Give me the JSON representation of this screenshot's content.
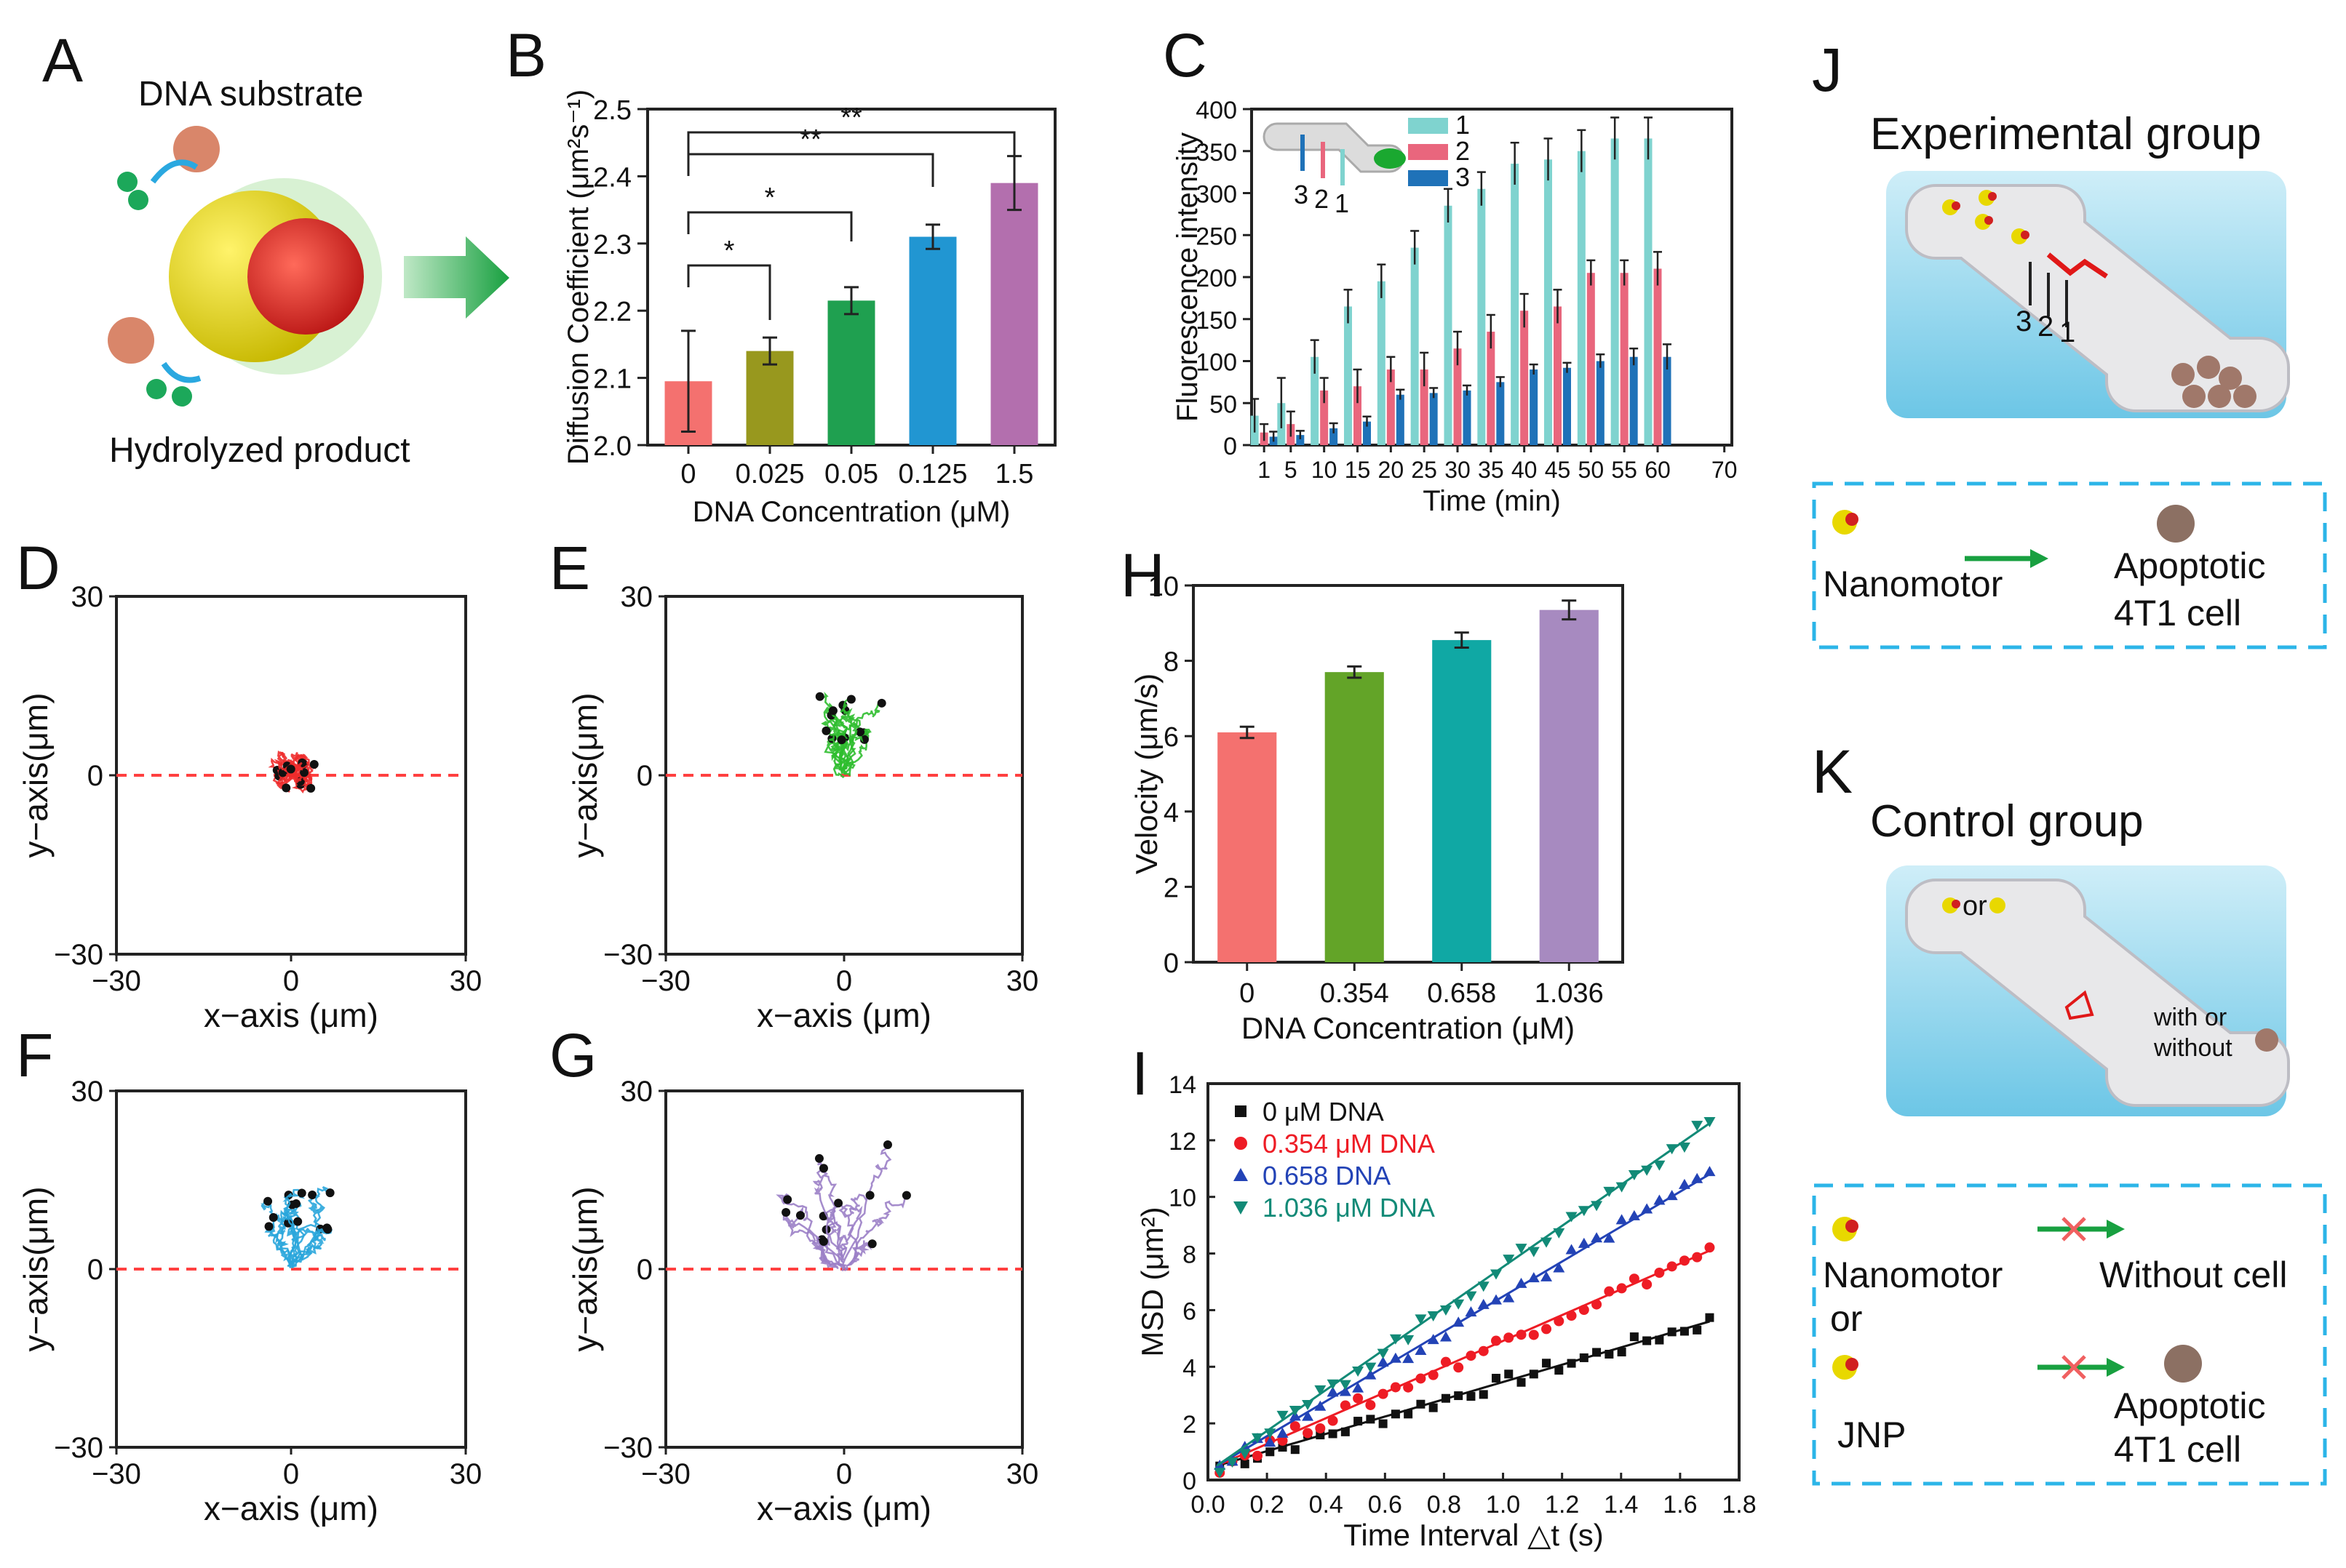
{
  "panels": {
    "A": {
      "letter": "A",
      "top_label": "DNA substrate",
      "bottom_label": "Hydrolyzed product"
    },
    "B": {
      "letter": "B"
    },
    "C": {
      "letter": "C"
    },
    "D": {
      "letter": "D"
    },
    "E": {
      "letter": "E"
    },
    "F": {
      "letter": "F"
    },
    "G": {
      "letter": "G"
    },
    "H": {
      "letter": "H"
    },
    "I": {
      "letter": "I"
    },
    "J": {
      "letter": "J",
      "title": "Experimental group",
      "channel_marks": [
        "3",
        "2",
        "1"
      ],
      "legend_left": "Nanomotor",
      "legend_right_1": "Apoptotic",
      "legend_right_2": "4T1 cell"
    },
    "K": {
      "letter": "K",
      "title": "Control group",
      "or_label": "or",
      "with_or_1": "with or",
      "with_or_2": "without",
      "row1_left": "Nanomotor",
      "row1_right": "Without cell",
      "or_mid": "or",
      "row2_left": "JNP",
      "row2_right_1": "Apoptotic",
      "row2_right_2": "4T1 cell"
    }
  },
  "colors": {
    "salmon": "#f4716f",
    "olive": "#98981e",
    "green": "#1fa050",
    "blue": "#2196d2",
    "purple": "#b36fae",
    "teal": "#7fd3cf",
    "pink": "#e9667d",
    "darkblue": "#1f72b8",
    "h_green": "#63a428",
    "h_teal": "#10a8a4",
    "h_purple": "#a78ac0",
    "i0": "#111111",
    "i1": "#ee1c25",
    "i2": "#2343b6",
    "i3": "#128a77",
    "traj_red": "#ee2b2b",
    "traj_green": "#2fbe2f",
    "traj_blue": "#2aa6dc",
    "traj_purple": "#9b7fc6",
    "dashed": "#ff4040",
    "box_dash": "#2cb5e8"
  },
  "chart_data": [
    {
      "id": "B",
      "type": "bar",
      "categories": [
        "0",
        "0.025",
        "0.05",
        "0.125",
        "1.5"
      ],
      "values": [
        2.095,
        2.14,
        2.215,
        2.31,
        2.39
      ],
      "errors": [
        0.075,
        0.02,
        0.02,
        0.018,
        0.04
      ],
      "ylim": [
        2.0,
        2.5
      ],
      "yticks": [
        "2.0",
        "2.1",
        "2.2",
        "2.3",
        "2.4",
        "2.5"
      ],
      "xlabel": "DNA Concentration (μM)",
      "ylabel": "Diffusion Coefficient (μm²s⁻¹)",
      "significance": [
        {
          "from": 0,
          "to": 1,
          "label": "*"
        },
        {
          "from": 0,
          "to": 2,
          "label": "*"
        },
        {
          "from": 0,
          "to": 3,
          "label": "**"
        },
        {
          "from": 0,
          "to": 4,
          "label": "**"
        }
      ]
    },
    {
      "id": "C",
      "type": "bar",
      "x": [
        "1",
        "5",
        "10",
        "15",
        "20",
        "25",
        "30",
        "35",
        "40",
        "45",
        "50",
        "55",
        "60"
      ],
      "xticks": [
        "1",
        "5",
        "10",
        "15",
        "20",
        "25",
        "30",
        "35",
        "40",
        "45",
        "50",
        "55",
        "60",
        "70"
      ],
      "series": [
        {
          "name": "1",
          "values": [
            35,
            50,
            105,
            165,
            195,
            235,
            285,
            305,
            335,
            340,
            350,
            365,
            365
          ],
          "errors": [
            20,
            30,
            20,
            20,
            20,
            20,
            20,
            20,
            25,
            25,
            25,
            25,
            25
          ]
        },
        {
          "name": "2",
          "values": [
            15,
            25,
            65,
            70,
            90,
            90,
            115,
            135,
            160,
            165,
            205,
            205,
            210
          ],
          "errors": [
            10,
            15,
            15,
            20,
            15,
            20,
            20,
            20,
            20,
            20,
            15,
            15,
            20
          ]
        },
        {
          "name": "3",
          "values": [
            10,
            12,
            20,
            28,
            60,
            62,
            65,
            75,
            90,
            92,
            100,
            105,
            105
          ],
          "errors": [
            6,
            5,
            6,
            6,
            6,
            6,
            6,
            6,
            6,
            6,
            8,
            10,
            15
          ]
        }
      ],
      "ylim": [
        0,
        400
      ],
      "yticks": [
        "0",
        "50",
        "100",
        "150",
        "200",
        "250",
        "300",
        "350",
        "400"
      ],
      "xlabel": "Time (min)",
      "ylabel": "Fluorescence intensity",
      "inset_marks": [
        "3",
        "2",
        "1"
      ]
    },
    {
      "id": "D",
      "type": "scatter",
      "xlabel": "x−axis (μm)",
      "ylabel": "y−axis(μm)",
      "xlim": [
        -30,
        30
      ],
      "ylim": [
        -30,
        30
      ],
      "xticks": [
        "−30",
        "0",
        "30"
      ],
      "yticks": [
        "30",
        "0",
        "−30"
      ],
      "center": [
        0,
        0
      ],
      "spread": [
        5,
        7
      ]
    },
    {
      "id": "E",
      "type": "scatter",
      "xlabel": "x−axis (μm)",
      "ylabel": "y−axis(μm)",
      "xlim": [
        -30,
        30
      ],
      "ylim": [
        -30,
        30
      ],
      "xticks": [
        "−30",
        "0",
        "30"
      ],
      "yticks": [
        "30",
        "0",
        "−30"
      ],
      "center": [
        0,
        8
      ],
      "spread": [
        6,
        10
      ]
    },
    {
      "id": "F",
      "type": "scatter",
      "xlabel": "x−axis (μm)",
      "ylabel": "y−axis(μm)",
      "xlim": [
        -30,
        30
      ],
      "ylim": [
        -30,
        30
      ],
      "xticks": [
        "−30",
        "0",
        "30"
      ],
      "yticks": [
        "30",
        "0",
        "−30"
      ],
      "center": [
        0,
        9
      ],
      "spread": [
        8,
        14
      ]
    },
    {
      "id": "G",
      "type": "scatter",
      "xlabel": "x−axis (μm)",
      "ylabel": "y−axis(μm)",
      "xlim": [
        -30,
        30
      ],
      "ylim": [
        -30,
        30
      ],
      "xticks": [
        "−30",
        "0",
        "30"
      ],
      "yticks": [
        "30",
        "0",
        "−30"
      ],
      "center": [
        0,
        10
      ],
      "spread": [
        12,
        22
      ]
    },
    {
      "id": "H",
      "type": "bar",
      "categories": [
        "0",
        "0.354",
        "0.658",
        "1.036"
      ],
      "values": [
        6.1,
        7.7,
        8.55,
        9.35
      ],
      "errors": [
        0.15,
        0.15,
        0.2,
        0.25
      ],
      "ylim": [
        0,
        10
      ],
      "yticks": [
        "0",
        "2",
        "4",
        "6",
        "8",
        "10"
      ],
      "xlabel": "DNA Concentration (μM)",
      "ylabel": "Velocity (μm/s)"
    },
    {
      "id": "I",
      "type": "scatter",
      "xlim": [
        0,
        1.8
      ],
      "ylim": [
        0,
        14
      ],
      "xticks": [
        "0.0",
        "0.2",
        "0.4",
        "0.6",
        "0.8",
        "1.0",
        "1.2",
        "1.4",
        "1.6",
        "1.8"
      ],
      "yticks": [
        "0",
        "2",
        "4",
        "6",
        "8",
        "10",
        "12",
        "14"
      ],
      "xlabel": "Time Interval △t (s)",
      "ylabel": "MSD (μm²)",
      "series": [
        {
          "name": "0 μM DNA",
          "slope": 3.2,
          "end": 5.6,
          "marker": "square"
        },
        {
          "name": "0.354 μM DNA",
          "slope": 4.6,
          "end": 8.1,
          "marker": "circle"
        },
        {
          "name": "0.658 DNA",
          "slope": 6.0,
          "end": 10.8,
          "marker": "triangle-up"
        },
        {
          "name": "1.036 μM DNA",
          "slope": 7.2,
          "end": 12.6,
          "marker": "triangle-down"
        }
      ]
    }
  ]
}
